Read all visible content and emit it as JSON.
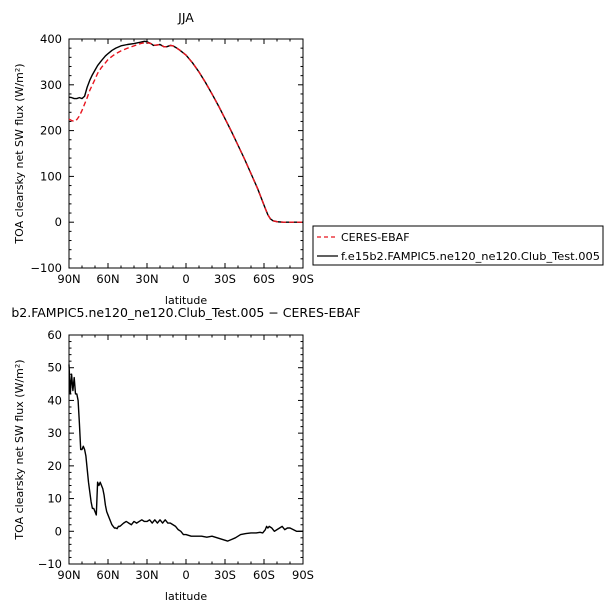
{
  "chart_data": [
    {
      "type": "line",
      "title": "JJA",
      "xlabel": "latitude",
      "ylabel": "TOA clearsky net SW flux (W/m²)",
      "ylim": [
        -100,
        400
      ],
      "yticks": [
        "−100",
        "0",
        "100",
        "200",
        "300",
        "400"
      ],
      "xlim": [
        90,
        -90
      ],
      "xticks": [
        "90N",
        "60N",
        "30N",
        "0",
        "30S",
        "60S",
        "90S"
      ],
      "x": [
        90,
        88,
        86,
        84,
        82,
        80,
        78,
        76,
        74,
        72,
        70,
        68,
        65,
        62,
        60,
        57,
        54,
        50,
        45,
        40,
        35,
        32,
        30,
        27,
        25,
        22,
        20,
        17,
        15,
        12,
        10,
        7,
        5,
        0,
        -5,
        -10,
        -15,
        -20,
        -25,
        -30,
        -35,
        -40,
        -45,
        -50,
        -55,
        -58,
        -61,
        -63,
        -65,
        -67,
        -70,
        -75,
        -80,
        -85,
        -90
      ],
      "legend_placement": "right",
      "series": [
        {
          "name": "CERES-EBAF",
          "style": "dashed",
          "color": "#e8141e",
          "values": [
            225,
            222,
            220,
            224,
            232,
            244,
            258,
            272,
            288,
            300,
            312,
            325,
            338,
            348,
            355,
            362,
            368,
            374,
            380,
            385,
            390,
            392,
            392,
            390,
            386,
            387,
            388,
            383,
            383,
            386,
            385,
            380,
            376,
            365,
            348,
            328,
            305,
            280,
            254,
            226,
            198,
            168,
            138,
            106,
            74,
            52,
            30,
            16,
            7,
            3,
            1,
            0,
            0,
            0,
            0
          ]
        },
        {
          "name": "f.e15b2.FAMPIC5.ne120_ne120.Club_Test.005",
          "style": "solid",
          "color": "#000000",
          "values": [
            273,
            272,
            270,
            270,
            272,
            270,
            275,
            295,
            310,
            322,
            332,
            342,
            353,
            363,
            368,
            375,
            380,
            385,
            388,
            390,
            393,
            395,
            394,
            390,
            386,
            387,
            388,
            383,
            383,
            386,
            385,
            380,
            376,
            365,
            348,
            328,
            305,
            280,
            254,
            226,
            198,
            168,
            138,
            106,
            74,
            52,
            30,
            16,
            7,
            3,
            1,
            0,
            0,
            0,
            0
          ]
        }
      ]
    },
    {
      "type": "line",
      "title": "b2.FAMPIC5.ne120_ne120.Club_Test.005  −  CERES-EBAF",
      "xlabel": "latitude",
      "ylabel": "TOA clearsky net SW flux (W/m²)",
      "ylim": [
        -10,
        60
      ],
      "yticks": [
        "−10",
        "0",
        "10",
        "20",
        "30",
        "40",
        "50",
        "60"
      ],
      "xlim": [
        90,
        -90
      ],
      "xticks": [
        "90N",
        "60N",
        "30N",
        "0",
        "30S",
        "60S",
        "90S"
      ],
      "series": [
        {
          "color": "#000000",
          "x": [
            90,
            89,
            88,
            87,
            86,
            85,
            84,
            83,
            82,
            81,
            80,
            79,
            78,
            77,
            76,
            75,
            74,
            73,
            72,
            71,
            70,
            69,
            68,
            67,
            66,
            65,
            64,
            63,
            62,
            61,
            60,
            59,
            58,
            57,
            56,
            55,
            54,
            53,
            52,
            51,
            50,
            48,
            46,
            44,
            42,
            40,
            38,
            36,
            34,
            32,
            30,
            28,
            26,
            24,
            22,
            20,
            18,
            16,
            14,
            12,
            10,
            8,
            6,
            4,
            2,
            0,
            -4,
            -8,
            -12,
            -16,
            -20,
            -24,
            -28,
            -32,
            -35,
            -38,
            -42,
            -46,
            -50,
            -54,
            -57,
            -59,
            -61,
            -62,
            -63,
            -64,
            -66,
            -68,
            -70,
            -72,
            -74,
            -76,
            -78,
            -80,
            -85,
            -90
          ],
          "values": [
            51,
            42,
            48,
            43,
            47,
            42,
            42,
            40,
            33,
            25,
            25,
            26,
            25,
            23,
            19,
            15,
            12,
            9,
            7,
            7,
            6,
            5,
            15,
            14,
            15,
            14,
            13,
            11,
            8,
            6,
            5,
            4,
            3,
            2,
            1.5,
            1,
            1,
            0.8,
            1.5,
            1.5,
            1.8,
            2.5,
            3,
            2.5,
            2,
            3,
            2.5,
            3,
            3.5,
            3,
            3,
            3.5,
            2.5,
            3.5,
            2.5,
            3.5,
            2.5,
            3.5,
            2.5,
            2.5,
            2,
            1.5,
            0.5,
            0,
            -1,
            -1,
            -1.5,
            -1.5,
            -1.5,
            -1.8,
            -1.5,
            -2,
            -2.5,
            -3,
            -2.5,
            -2,
            -1,
            -0.7,
            -0.5,
            -0.5,
            -0.3,
            -0.5,
            0.5,
            1.5,
            1,
            1.5,
            1,
            0,
            0.5,
            1,
            1.5,
            0.5,
            1,
            1,
            0,
            0
          ]
        }
      ]
    }
  ]
}
